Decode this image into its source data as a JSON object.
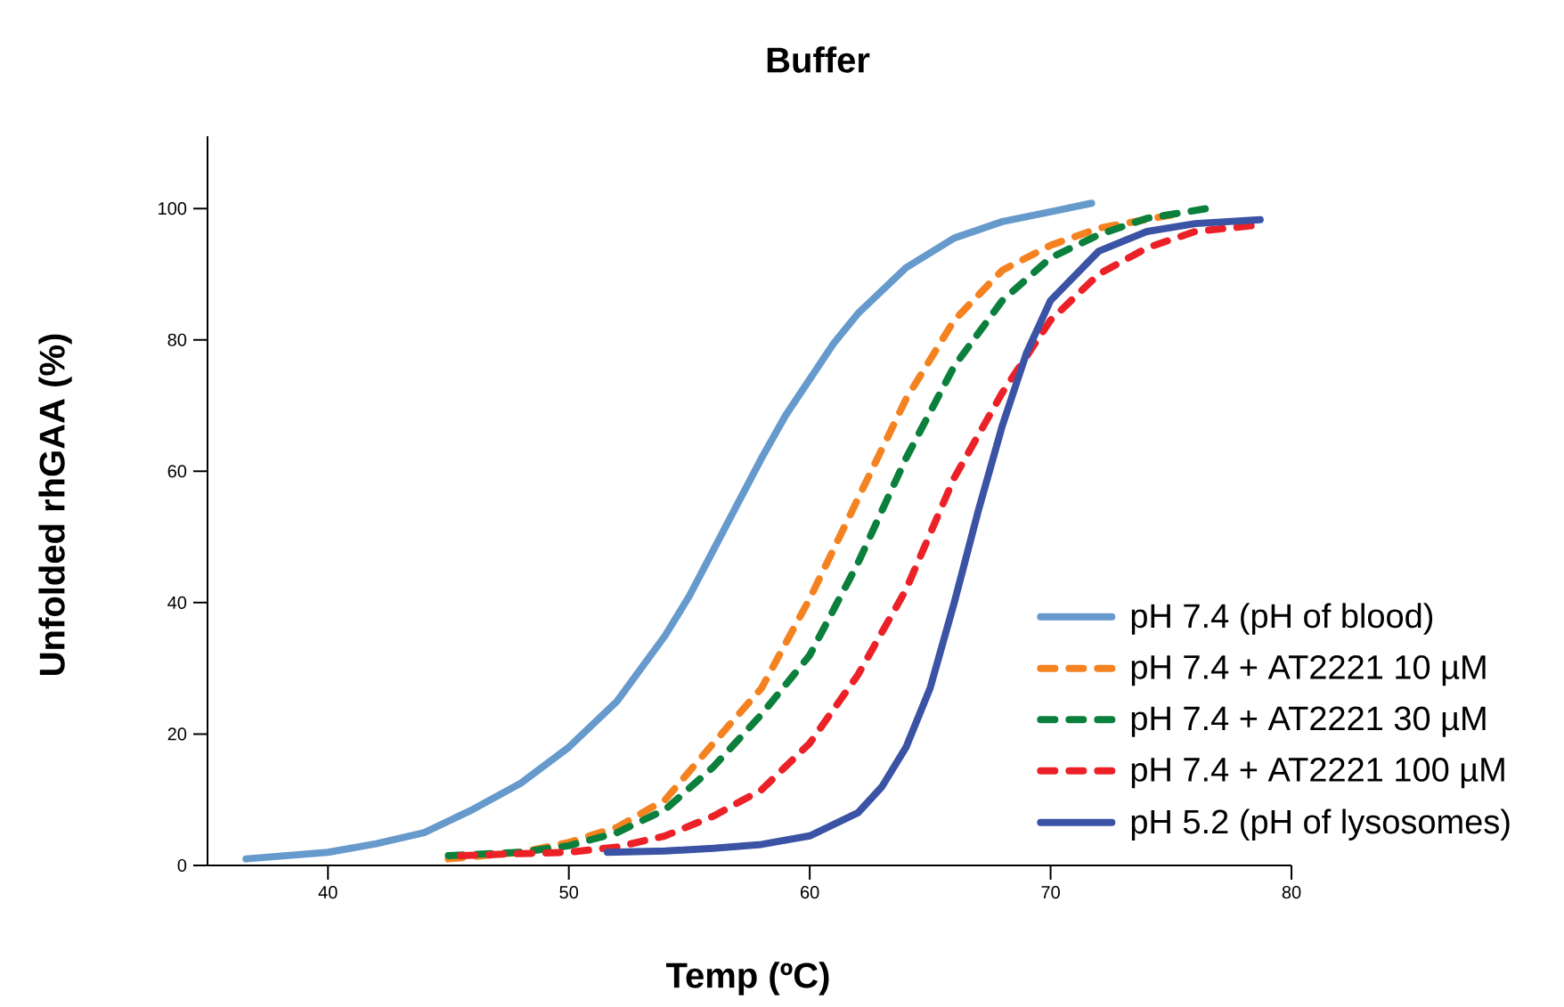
{
  "chart_data": {
    "type": "line",
    "title": "Buffer",
    "xlabel": "Temp (ºC)",
    "ylabel": "Unfolded rhGAA (%)",
    "xlim": [
      35,
      80
    ],
    "xticks": [
      40,
      50,
      60,
      70,
      80
    ],
    "ylim": [
      0,
      111
    ],
    "yticks": [
      0,
      20,
      40,
      60,
      80,
      100
    ],
    "grid": false,
    "legend": "bottom right",
    "marker": "none",
    "series": [
      {
        "name": "pH 7.4 (pH of blood)",
        "color": "#6699cc",
        "line_style": "solid",
        "x": [
          36.6,
          40,
          42,
          44,
          46,
          48,
          50,
          52,
          54,
          55,
          56,
          57,
          58,
          59,
          60,
          61,
          62,
          64,
          66,
          68,
          70,
          71.7
        ],
        "values": [
          1,
          2,
          3.3,
          5,
          8.5,
          12.5,
          18,
          25,
          35,
          41,
          48,
          55,
          62,
          68.5,
          74,
          79.5,
          84,
          91,
          95.5,
          98,
          99.5,
          100.8
        ]
      },
      {
        "name": "pH 7.4 + AT2221 10 µM",
        "color": "#f58220",
        "line_style": "dashed",
        "x": [
          45,
          48,
          50,
          52,
          54,
          56,
          58,
          60,
          62,
          64,
          66,
          68,
          70,
          72,
          75
        ],
        "values": [
          1,
          2,
          3.5,
          5.8,
          10,
          18.6,
          27,
          40.6,
          55.8,
          71,
          83,
          90.6,
          94.4,
          97,
          99
        ]
      },
      {
        "name": "pH 7.4 + AT2221 30 µM",
        "color": "#0b7f3c",
        "line_style": "dashed",
        "x": [
          45,
          48,
          50,
          52,
          54,
          56,
          58,
          60,
          62,
          64,
          66,
          68,
          70,
          72,
          74,
          76.5
        ],
        "values": [
          1.5,
          2,
          3,
          5,
          8.5,
          15,
          23,
          32,
          46,
          62,
          76,
          86,
          92.5,
          96,
          98.5,
          100
        ]
      },
      {
        "name": "pH 7.4 + AT2221 100 µM",
        "color": "#ec2127",
        "line_style": "dashed",
        "x": [
          45.5,
          48,
          50,
          52,
          54,
          56,
          58,
          60,
          62,
          64,
          66,
          68,
          70,
          72,
          74,
          76,
          78.7
        ],
        "values": [
          1.5,
          1.8,
          2,
          2.8,
          4.5,
          7.5,
          11.5,
          18.6,
          29,
          42,
          59,
          72,
          83,
          90,
          94,
          96.5,
          97.5
        ]
      },
      {
        "name": "pH 5.2 (pH of lysosomes)",
        "color": "#3a53a4",
        "line_style": "solid",
        "x": [
          51.6,
          54,
          56,
          58,
          60,
          62,
          63,
          64,
          65,
          66,
          67,
          68,
          69,
          70,
          72,
          74,
          76,
          78.7
        ],
        "values": [
          2,
          2.2,
          2.6,
          3.2,
          4.5,
          8,
          12,
          18,
          27,
          40,
          54,
          67,
          78,
          86,
          93.5,
          96.5,
          97.7,
          98.3
        ]
      }
    ]
  }
}
